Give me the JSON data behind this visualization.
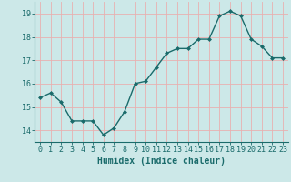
{
  "x": [
    0,
    1,
    2,
    3,
    4,
    5,
    6,
    7,
    8,
    9,
    10,
    11,
    12,
    13,
    14,
    15,
    16,
    17,
    18,
    19,
    20,
    21,
    22,
    23
  ],
  "y": [
    15.4,
    15.6,
    15.2,
    14.4,
    14.4,
    14.4,
    13.8,
    14.1,
    14.8,
    16.0,
    16.1,
    16.7,
    17.3,
    17.5,
    17.5,
    17.9,
    17.9,
    18.9,
    19.1,
    18.9,
    17.9,
    17.6,
    17.1,
    17.1
  ],
  "line_color": "#1a6b6b",
  "marker": "D",
  "marker_size": 2,
  "bg_color": "#cce8e8",
  "grid_color": "#e8b0b0",
  "xlabel": "Humidex (Indice chaleur)",
  "ylim": [
    13.5,
    19.5
  ],
  "xlim": [
    -0.5,
    23.5
  ],
  "yticks": [
    14,
    15,
    16,
    17,
    18,
    19
  ],
  "xticks": [
    0,
    1,
    2,
    3,
    4,
    5,
    6,
    7,
    8,
    9,
    10,
    11,
    12,
    13,
    14,
    15,
    16,
    17,
    18,
    19,
    20,
    21,
    22,
    23
  ],
  "tick_label_color": "#1a6b6b",
  "spine_color": "#1a6b6b",
  "font_size": 6,
  "xlabel_fontsize": 7,
  "lw": 1.0
}
